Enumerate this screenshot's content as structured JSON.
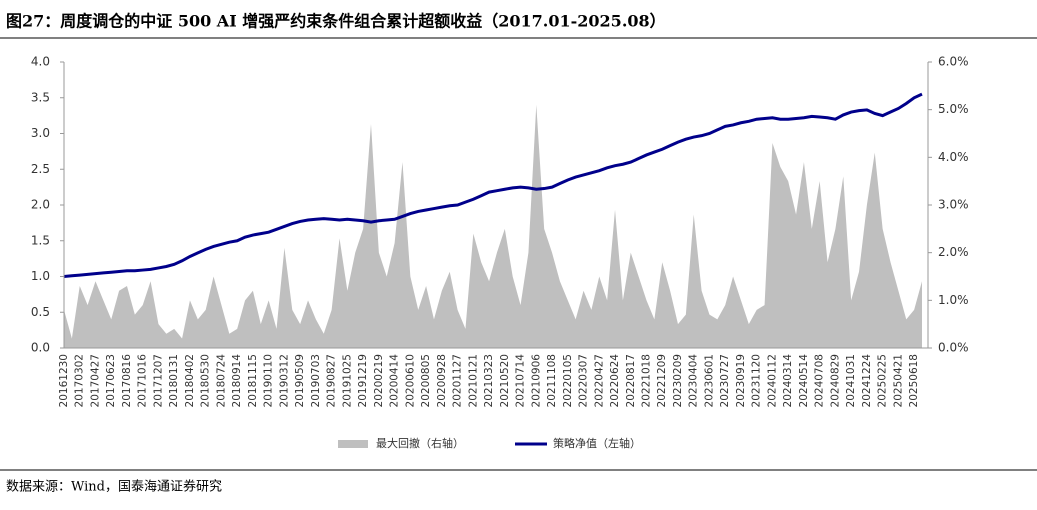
{
  "chart_data": {
    "type": "combo",
    "title": "图27：周度调仓的中证 500 AI 增强严约束条件组合累计超额收益（2017.01-2025.08）",
    "source": "数据来源：Wind，国泰海通证券研究",
    "categories": [
      "20161230",
      null,
      "20170302",
      null,
      "20170427",
      null,
      "20170623",
      null,
      "20170816",
      null,
      "20171016",
      null,
      "20171207",
      null,
      "20180131",
      null,
      "20180402",
      null,
      "20180530",
      null,
      "20180724",
      null,
      "20180914",
      null,
      "20181115",
      null,
      "20190110",
      null,
      "20190312",
      null,
      "20190509",
      null,
      "20190703",
      null,
      "20190827",
      null,
      "20191025",
      null,
      "20191219",
      null,
      "20200219",
      null,
      "20200414",
      null,
      "20200610",
      null,
      "20200805",
      null,
      "20200928",
      null,
      "20201127",
      null,
      "20210121",
      null,
      "20210323",
      null,
      "20210520",
      null,
      "20210714",
      null,
      "20210906",
      null,
      "20211108",
      null,
      "20220105",
      null,
      "20220307",
      null,
      "20220427",
      null,
      "20220624",
      null,
      "20220817",
      null,
      "20221018",
      null,
      "20221209",
      null,
      "20230209",
      null,
      "20230404",
      null,
      "20230601",
      null,
      "20230727",
      null,
      "20230919",
      null,
      "20231120",
      null,
      "20240112",
      null,
      "20240314",
      null,
      "20240514",
      null,
      "20240708",
      null,
      "20240829",
      null,
      "20241031",
      null,
      "20241224",
      null,
      "20250225",
      null,
      "20250421",
      null,
      "20250618",
      null
    ],
    "series": [
      {
        "name": "最大回撤（右轴）",
        "type": "area",
        "axis": "y2",
        "color": "#bfbfbf",
        "values": [
          0.8,
          0.2,
          1.3,
          0.9,
          1.4,
          1.0,
          0.6,
          1.2,
          1.3,
          0.7,
          0.9,
          1.4,
          0.5,
          0.3,
          0.4,
          0.2,
          1.0,
          0.6,
          0.8,
          1.5,
          0.9,
          0.3,
          0.4,
          1.0,
          1.2,
          0.5,
          1.0,
          0.4,
          2.1,
          0.8,
          0.5,
          1.0,
          0.6,
          0.3,
          0.8,
          2.3,
          1.2,
          2.0,
          2.5,
          4.7,
          2.0,
          1.5,
          2.2,
          3.9,
          1.5,
          0.8,
          1.3,
          0.6,
          1.2,
          1.6,
          0.8,
          0.4,
          2.4,
          1.8,
          1.4,
          2.0,
          2.5,
          1.5,
          0.9,
          2.0,
          5.1,
          2.5,
          2.0,
          1.4,
          1.0,
          0.6,
          1.2,
          0.8,
          1.5,
          1.0,
          2.9,
          1.0,
          2.0,
          1.5,
          1.0,
          0.6,
          1.8,
          1.2,
          0.5,
          0.7,
          2.8,
          1.2,
          0.7,
          0.6,
          0.9,
          1.5,
          1.0,
          0.5,
          0.8,
          0.9,
          4.3,
          3.8,
          3.5,
          2.8,
          3.9,
          2.5,
          3.5,
          1.8,
          2.5,
          3.6,
          1.0,
          1.6,
          3.0,
          4.1,
          2.5,
          1.8,
          1.2,
          0.6,
          0.8,
          1.4
        ]
      },
      {
        "name": "策略净值（左轴）",
        "type": "line",
        "color": "#00008b",
        "values": [
          1.0,
          1.01,
          1.02,
          1.03,
          1.04,
          1.05,
          1.06,
          1.07,
          1.08,
          1.08,
          1.09,
          1.1,
          1.12,
          1.14,
          1.17,
          1.22,
          1.28,
          1.33,
          1.38,
          1.42,
          1.45,
          1.48,
          1.5,
          1.55,
          1.58,
          1.6,
          1.62,
          1.66,
          1.7,
          1.74,
          1.77,
          1.79,
          1.8,
          1.81,
          1.8,
          1.79,
          1.8,
          1.79,
          1.78,
          1.76,
          1.78,
          1.79,
          1.8,
          1.84,
          1.88,
          1.91,
          1.93,
          1.95,
          1.97,
          1.99,
          2.0,
          2.04,
          2.08,
          2.13,
          2.18,
          2.2,
          2.22,
          2.24,
          2.25,
          2.24,
          2.22,
          2.23,
          2.25,
          2.3,
          2.35,
          2.39,
          2.42,
          2.45,
          2.48,
          2.52,
          2.55,
          2.57,
          2.6,
          2.65,
          2.7,
          2.74,
          2.78,
          2.83,
          2.88,
          2.92,
          2.95,
          2.97,
          3.0,
          3.05,
          3.1,
          3.12,
          3.15,
          3.17,
          3.2,
          3.21,
          3.22,
          3.2,
          3.2,
          3.21,
          3.22,
          3.24,
          3.23,
          3.22,
          3.2,
          3.26,
          3.3,
          3.32,
          3.33,
          3.28,
          3.25,
          3.3,
          3.35,
          3.42,
          3.5,
          3.55
        ]
      }
    ],
    "ylim": [
      0,
      4
    ],
    "yticks": [
      {
        "value": 0,
        "label": "0.0"
      },
      {
        "value": 0.5,
        "label": "0.5"
      },
      {
        "value": 1,
        "label": "1.0"
      },
      {
        "value": 1.5,
        "label": "1.5"
      },
      {
        "value": 2,
        "label": "2.0"
      },
      {
        "value": 2.5,
        "label": "2.5"
      },
      {
        "value": 3,
        "label": "3.0"
      },
      {
        "value": 3.5,
        "label": "3.5"
      },
      {
        "value": 4,
        "label": "4.0"
      }
    ],
    "y2lim": [
      0,
      6
    ],
    "y2ticks": [
      {
        "value": 0,
        "label": "0.0%"
      },
      {
        "value": 1,
        "label": "1.0%"
      },
      {
        "value": 2,
        "label": "2.0%"
      },
      {
        "value": 3,
        "label": "3.0%"
      },
      {
        "value": 4,
        "label": "4.0%"
      },
      {
        "value": 5,
        "label": "5.0%"
      },
      {
        "value": 6,
        "label": "6.0%"
      }
    ],
    "legend": "bottom"
  }
}
